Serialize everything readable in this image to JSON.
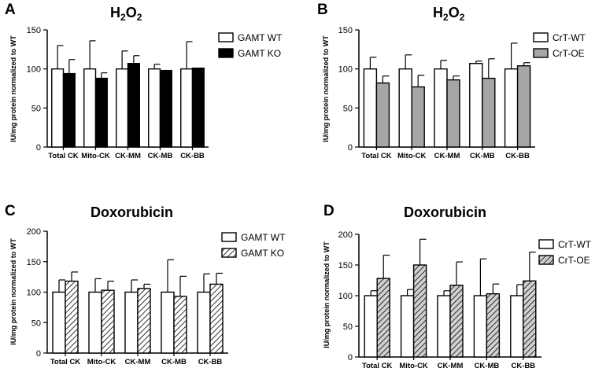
{
  "chart_data": [
    {
      "type": "bar",
      "panel_label": "A",
      "title": "H2O2",
      "title_main": "H",
      "title_sub": "2",
      "title_main2": "O",
      "title_sub2": "2",
      "ylabel": "IU/mg protein normalized to WT",
      "xlabel": "",
      "ylim": [
        0,
        150
      ],
      "yticks": [
        "0",
        "50",
        "100",
        "150"
      ],
      "categories": [
        "Total CK",
        "Mito-CK",
        "CK-MM",
        "CK-MB",
        "CK-BB"
      ],
      "series": [
        {
          "name": "GAMT WT",
          "fill": "#ffffff",
          "values": [
            100,
            100,
            100,
            100,
            100
          ],
          "errors": [
            30,
            36,
            23,
            6,
            35
          ]
        },
        {
          "name": "GAMT KO",
          "fill": "#000000",
          "values": [
            94,
            88,
            107,
            98,
            101
          ],
          "errors": [
            18,
            7,
            10,
            0,
            0
          ]
        }
      ],
      "legend_position": "top-right"
    },
    {
      "type": "bar",
      "panel_label": "B",
      "title": "H2O2",
      "title_main": "H",
      "title_sub": "2",
      "title_main2": "O",
      "title_sub2": "2",
      "ylabel": "IU/mg protein normalized to WT",
      "xlabel": "",
      "ylim": [
        0,
        150
      ],
      "yticks": [
        "0",
        "50",
        "100",
        "150"
      ],
      "categories": [
        "Total CK",
        "Mito-CK",
        "CK-MM",
        "CK-MB",
        "CK-BB"
      ],
      "series": [
        {
          "name": "CrT-WT",
          "fill": "#ffffff",
          "values": [
            100,
            100,
            100,
            107,
            100
          ],
          "errors": [
            15,
            18,
            11,
            3,
            33
          ]
        },
        {
          "name": "CrT-OE",
          "fill": "#a6a6a6",
          "values": [
            82,
            77,
            86,
            88,
            104
          ],
          "errors": [
            9,
            15,
            5,
            25,
            4
          ]
        }
      ],
      "legend_position": "top-right"
    },
    {
      "type": "bar",
      "panel_label": "C",
      "title": "Doxorubicin",
      "ylabel": "IU/mg protein normalized to WT",
      "xlabel": "",
      "ylim": [
        0,
        200
      ],
      "yticks": [
        "0",
        "50",
        "100",
        "150",
        "200"
      ],
      "categories": [
        "Total CK",
        "Mito-CK",
        "CK-MM",
        "CK-MB",
        "CK-BB"
      ],
      "series": [
        {
          "name": "GAMT WT",
          "fill": "#ffffff",
          "pattern": "none",
          "values": [
            100,
            100,
            100,
            100,
            100
          ],
          "errors": [
            20,
            22,
            20,
            53,
            30
          ]
        },
        {
          "name": "GAMT KO",
          "fill": "#ffffff",
          "pattern": "hatch",
          "values": [
            118,
            103,
            106,
            93,
            113
          ],
          "errors": [
            15,
            15,
            7,
            33,
            18
          ]
        }
      ],
      "legend_position": "top-right"
    },
    {
      "type": "bar",
      "panel_label": "D",
      "title": "Doxorubicin",
      "ylabel": "IU/mg protein normalized to WT",
      "xlabel": "",
      "ylim": [
        0,
        200
      ],
      "yticks": [
        "0",
        "50",
        "100",
        "150",
        "200"
      ],
      "categories": [
        "Total CK",
        "Mito-CK",
        "CK-MM",
        "CK-MB",
        "CK-BB"
      ],
      "series": [
        {
          "name": "CrT-WT",
          "fill": "#ffffff",
          "pattern": "none",
          "values": [
            100,
            100,
            100,
            100,
            100
          ],
          "errors": [
            8,
            10,
            8,
            60,
            18
          ]
        },
        {
          "name": "CrT-OE",
          "fill": "#d0d0d0",
          "pattern": "hatch",
          "values": [
            128,
            150,
            117,
            103,
            124
          ],
          "errors": [
            38,
            42,
            38,
            16,
            47
          ]
        }
      ],
      "legend_position": "right"
    }
  ]
}
